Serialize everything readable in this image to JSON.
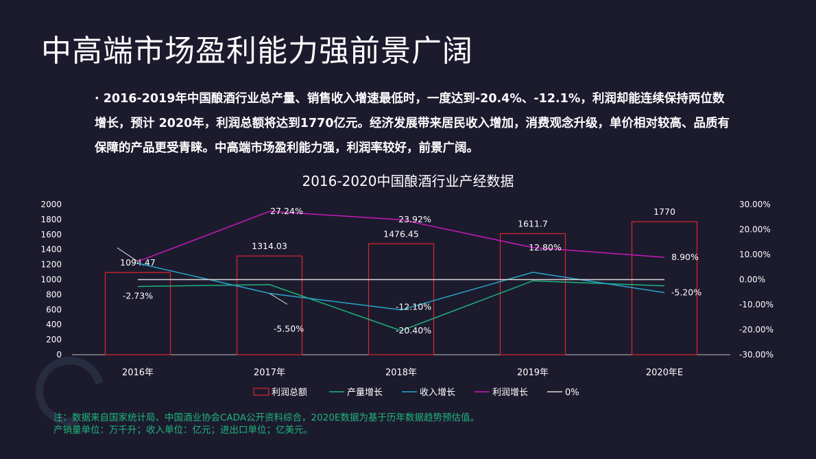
{
  "title": "中高端市场盈利能力强前景广阔",
  "summary": "· 2016-2019年中国酿酒行业总产量、销售收入增速最低时，一度达到-20.4%、-12.1%，利润却能连续保持两位数增长，预计 2020年，利润总额将达到1770亿元。经济发展带来居民收入增加，消费观念升级，单价相对较高、品质有保障的产品更受青睐。中高端市场盈利能力强，利润率较好，前景广阔。",
  "footnote": {
    "line1": "注：数据来自国家统计局、中国酒业协会CADA公开资料综合，2020E数据为基于历年数据趋势预估值。",
    "line2": "产销量单位：万千升；收入单位：亿元；进出口单位；亿美元。"
  },
  "chart_data": {
    "type": "bar",
    "title": "2016-2020中国酿酒行业产经数据",
    "categories": [
      "2016年",
      "2017年",
      "2018年",
      "2019年",
      "2020年E"
    ],
    "left_axis": {
      "ylim": [
        0,
        2000
      ],
      "ticks": [
        "0",
        "200",
        "400",
        "600",
        "800",
        "1000",
        "1200",
        "1400",
        "1600",
        "1800",
        "2000"
      ]
    },
    "right_axis": {
      "ylim": [
        -30,
        30
      ],
      "ticks": [
        "-30.00%",
        "-20.00%",
        "-10.00%",
        "0.00%",
        "10.00%",
        "20.00%",
        "30.00%"
      ]
    },
    "series": [
      {
        "name": "利润总额",
        "kind": "bar",
        "axis": "left",
        "color": "#e0242b",
        "values": [
          1094.47,
          1314.03,
          1476.45,
          1611.7,
          1770
        ],
        "labels": [
          "1094.47",
          "1314.03",
          "1476.45",
          "1611.7",
          "1770"
        ]
      },
      {
        "name": "产量增长",
        "kind": "line",
        "axis": "right",
        "color": "#1fb57c",
        "values": [
          -2.73,
          -2.0,
          -20.4,
          -0.5,
          -2.5
        ],
        "labels": [
          "-2.73%",
          "",
          "-20.40%",
          "",
          ""
        ]
      },
      {
        "name": "收入增长",
        "kind": "line",
        "axis": "right",
        "color": "#27a7c9",
        "values": [
          6.5,
          -5.5,
          -12.1,
          2.9,
          -5.2
        ],
        "labels": [
          "",
          "-5.50%",
          "-12.10%",
          "",
          "-5.20%"
        ]
      },
      {
        "name": "利润增长",
        "kind": "line",
        "axis": "right",
        "color": "#c81ab8",
        "values": [
          7.2,
          27.24,
          23.92,
          12.8,
          8.9
        ],
        "labels": [
          "",
          "27.24%",
          "23.92%",
          "12.80%",
          "8.90%"
        ]
      },
      {
        "name": "0%",
        "kind": "line",
        "axis": "right",
        "color": "#d9d9d9",
        "values": [
          0,
          0,
          0,
          0,
          0
        ],
        "labels": [
          "",
          "",
          "",
          "",
          ""
        ]
      }
    ],
    "legend_position": "bottom",
    "grid": false
  }
}
